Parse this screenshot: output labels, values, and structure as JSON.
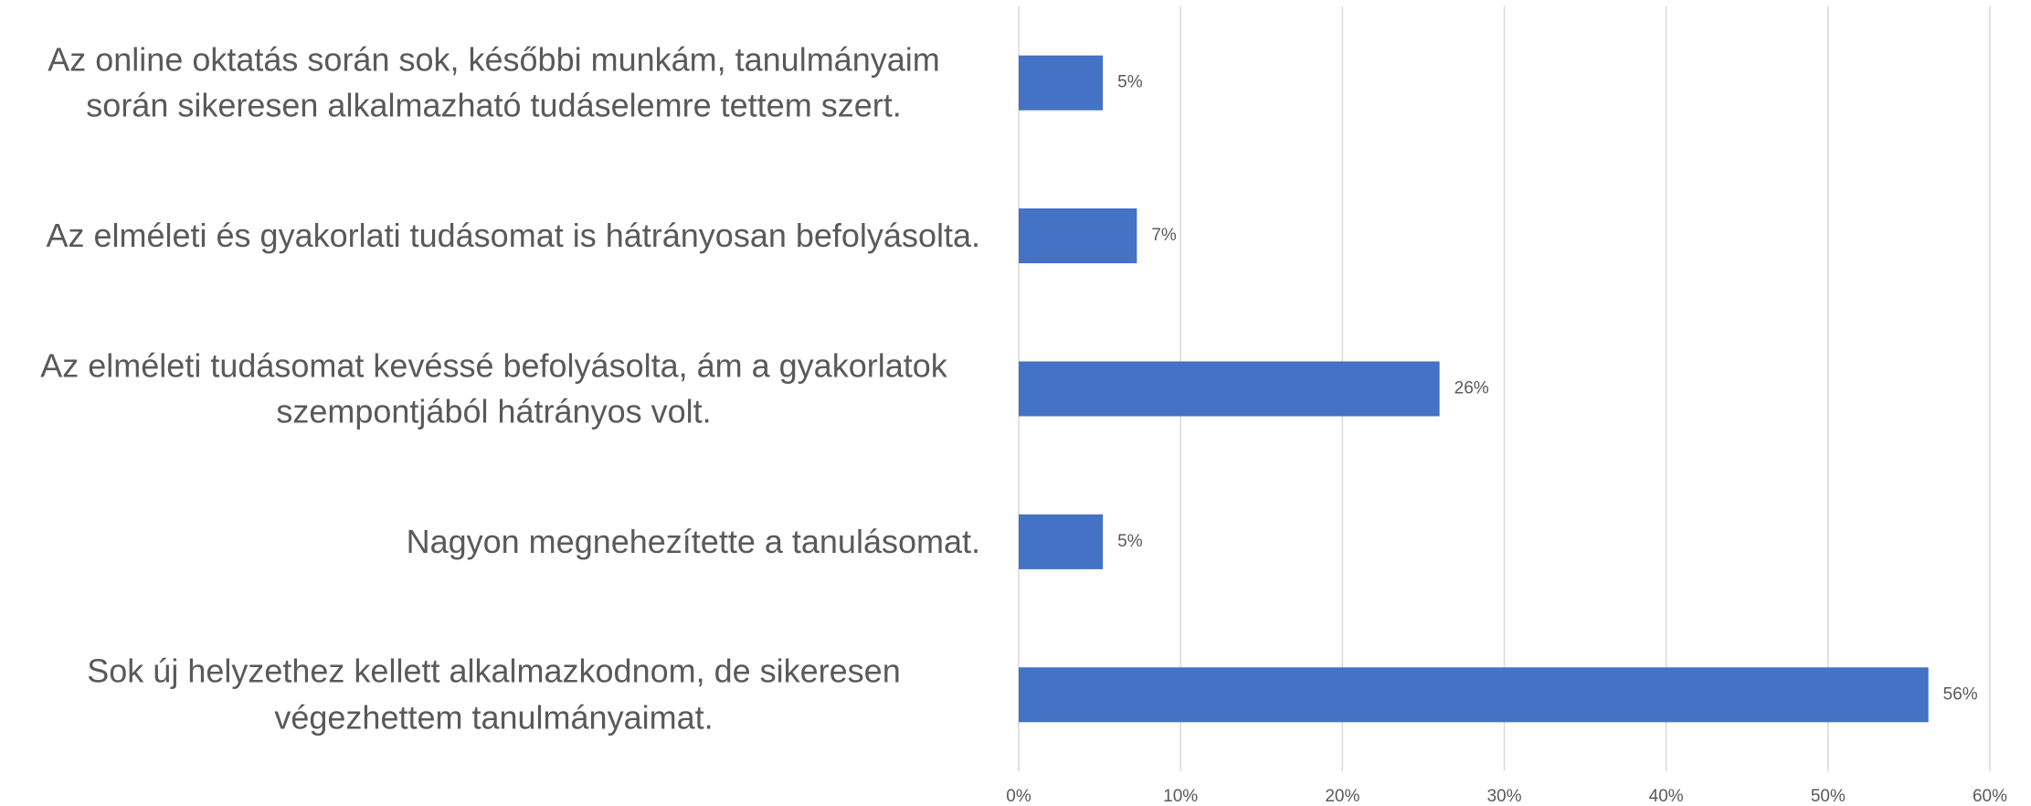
{
  "chart_data": {
    "type": "bar",
    "orientation": "horizontal",
    "categories": [
      "Az online oktatás során sok, későbbi munkám, tanulmányaim során sikeresen alkalmazható tudáselemre tettem szert.",
      "Az elméleti és gyakorlati tudásomat is hátrányosan befolyásolta.",
      "Az elméleti tudásomat kevéssé befolyásolta, ám a gyakorlatok szempontjából hátrányos volt.",
      "Nagyon megnehezítette a tanulásomat.",
      "Sok új helyzethez kellett alkalmazkodnom, de  sikeresen végezhettem tanulmányaimat."
    ],
    "values": [
      5.2,
      7.3,
      26,
      5.2,
      56.2
    ],
    "value_labels": [
      "5%",
      "7%",
      "26%",
      "5%",
      "56%"
    ],
    "color": "#4472c4",
    "xlim": [
      0,
      60
    ],
    "xticks": [
      {
        "value": 0,
        "label": "0%"
      },
      {
        "value": 10,
        "label": "10%"
      },
      {
        "value": 20,
        "label": "20%"
      },
      {
        "value": 30,
        "label": "30%"
      },
      {
        "value": 40,
        "label": "40%"
      },
      {
        "value": 50,
        "label": "50%"
      },
      {
        "value": 60,
        "label": "60%"
      }
    ],
    "grid": true
  }
}
